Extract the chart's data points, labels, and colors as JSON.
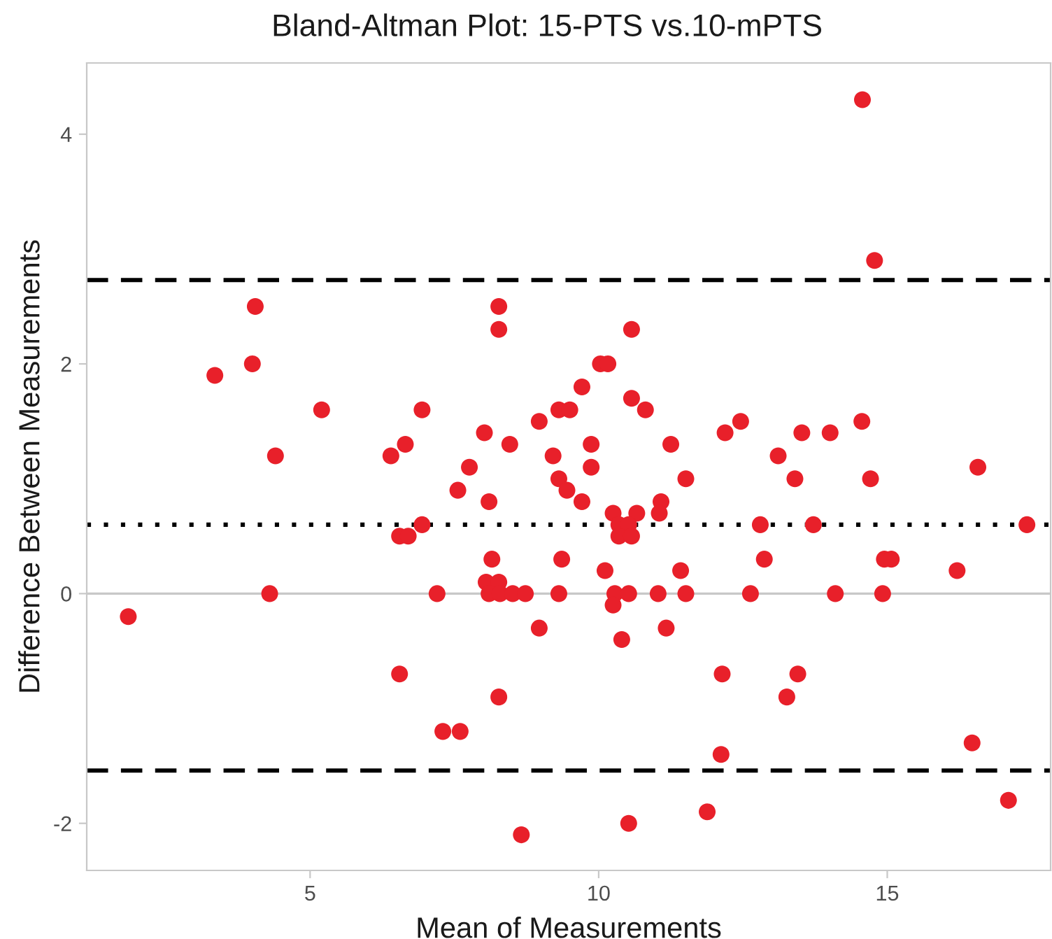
{
  "chart_data": {
    "type": "scatter",
    "title": "Bland-Altman Plot: 15-PTS vs.10-mPTS",
    "xlabel": "Mean of Measurements",
    "ylabel": "Difference Between Measurements",
    "x": [
      1.85,
      3.35,
      4.0,
      4.05,
      4.4,
      4.3,
      5.2,
      6.4,
      6.65,
      6.55,
      6.7,
      6.94,
      6.94,
      6.55,
      8.27,
      8.27,
      10.57,
      10.03,
      10.16,
      9.71,
      9.31,
      9.5,
      8.97,
      8.02,
      8.46,
      9.21,
      9.87,
      9.87,
      9.31,
      9.45,
      9.71,
      7.76,
      7.56,
      8.1,
      10.57,
      10.81,
      11.25,
      11.51,
      11.08,
      11.05,
      12.19,
      12.46,
      10.25,
      10.66,
      10.35,
      10.52,
      10.35,
      10.57,
      8.15,
      9.36,
      8.05,
      8.27,
      7.2,
      8.1,
      8.29,
      8.51,
      8.73,
      9.31,
      10.28,
      10.52,
      11.03,
      11.51,
      10.11,
      11.42,
      10.25,
      8.97,
      10.4,
      11.17,
      12.14,
      8.27,
      7.3,
      7.6,
      12.12,
      11.88,
      10.52,
      8.66,
      14.57,
      14.78,
      13.52,
      14.01,
      14.56,
      13.11,
      13.4,
      14.71,
      16.57,
      12.8,
      13.72,
      17.42,
      12.87,
      14.95,
      15.07,
      16.21,
      12.63,
      14.1,
      14.92,
      13.45,
      13.26,
      16.47,
      17.1
    ],
    "values": [
      -0.2,
      1.9,
      2.0,
      2.5,
      1.2,
      0,
      1.6,
      1.2,
      1.3,
      0.5,
      0.5,
      1.6,
      0.6,
      -0.7,
      2.5,
      2.3,
      2.3,
      2.0,
      2.0,
      1.8,
      1.6,
      1.6,
      1.5,
      1.4,
      1.3,
      1.2,
      1.3,
      1.1,
      1.0,
      0.9,
      0.8,
      1.1,
      0.9,
      0.8,
      1.7,
      1.6,
      1.3,
      1.0,
      0.8,
      0.7,
      1.4,
      1.5,
      0.7,
      0.7,
      0.6,
      0.6,
      0.5,
      0.5,
      0.3,
      0.3,
      0.1,
      0.1,
      0,
      0,
      0,
      0,
      0,
      0,
      0,
      0,
      0,
      0,
      0.2,
      0.2,
      -0.1,
      -0.3,
      -0.4,
      -0.3,
      -0.7,
      -0.9,
      -1.2,
      -1.2,
      -1.4,
      -1.9,
      -2.0,
      -2.1,
      4.3,
      2.9,
      1.4,
      1.4,
      1.5,
      1.2,
      1.0,
      1.0,
      1.1,
      0.6,
      0.6,
      0.6,
      0.3,
      0.3,
      0.3,
      0.2,
      0,
      0,
      0,
      -0.7,
      -0.9,
      -1.3,
      -1.8
    ],
    "color": "#e8202a",
    "marker": "circle",
    "xlim": [
      1.13,
      17.83
    ],
    "ylim": [
      -2.41,
      4.62
    ],
    "xticks": [
      5,
      10,
      15
    ],
    "yticks": [
      -2,
      0,
      2,
      4
    ],
    "grid": false,
    "ref_lines": [
      {
        "axis": "y",
        "value": 0,
        "color": "#c8c8c8",
        "line_style": "solid"
      },
      {
        "axis": "y",
        "value": 2.73,
        "color": "#000000",
        "line_style": "dashed"
      },
      {
        "axis": "y",
        "value": 0.6,
        "color": "#000000",
        "line_style": "dotted"
      },
      {
        "axis": "y",
        "value": -1.54,
        "color": "#000000",
        "line_style": "dashed"
      }
    ]
  }
}
